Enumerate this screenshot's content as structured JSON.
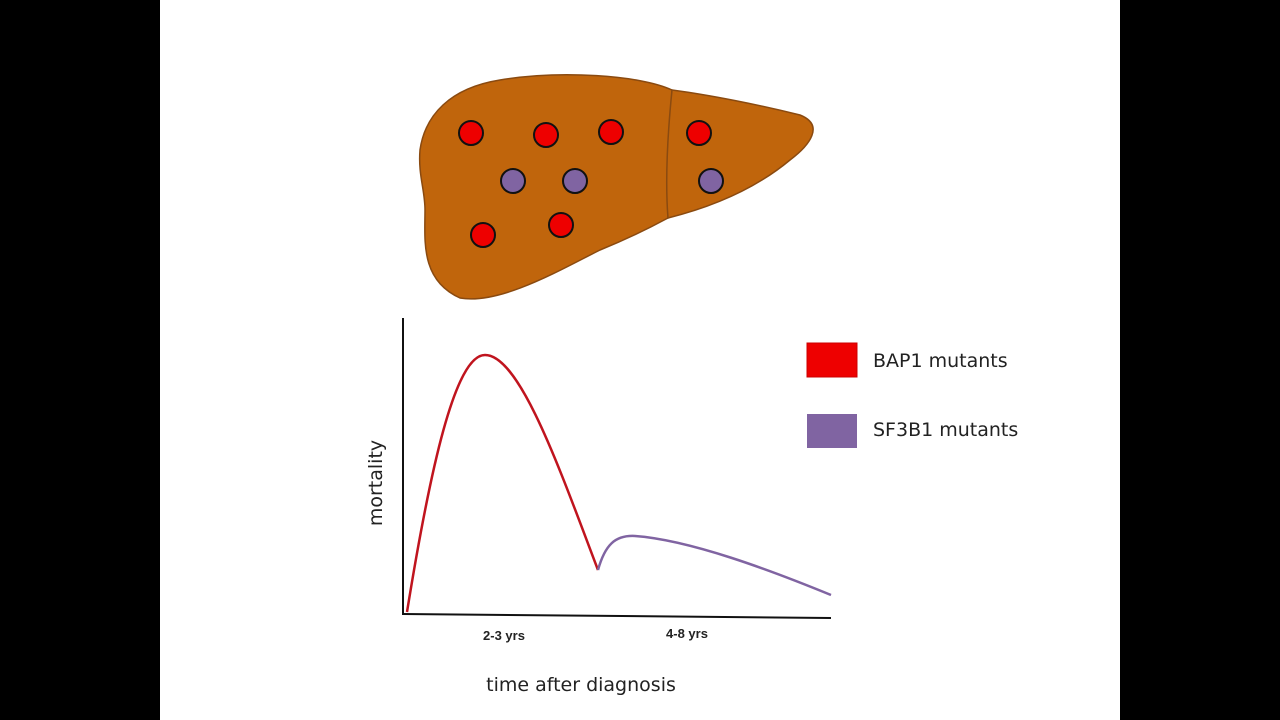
{
  "legend": [
    {
      "label": "BAP1 mutants"
    },
    {
      "label": "SF3B1 mutants"
    }
  ],
  "axes": {
    "y_label": "mortality",
    "x_label": "time after diagnosis",
    "x_ticks": [
      "2-3 yrs",
      "4-8 yrs"
    ]
  }
}
